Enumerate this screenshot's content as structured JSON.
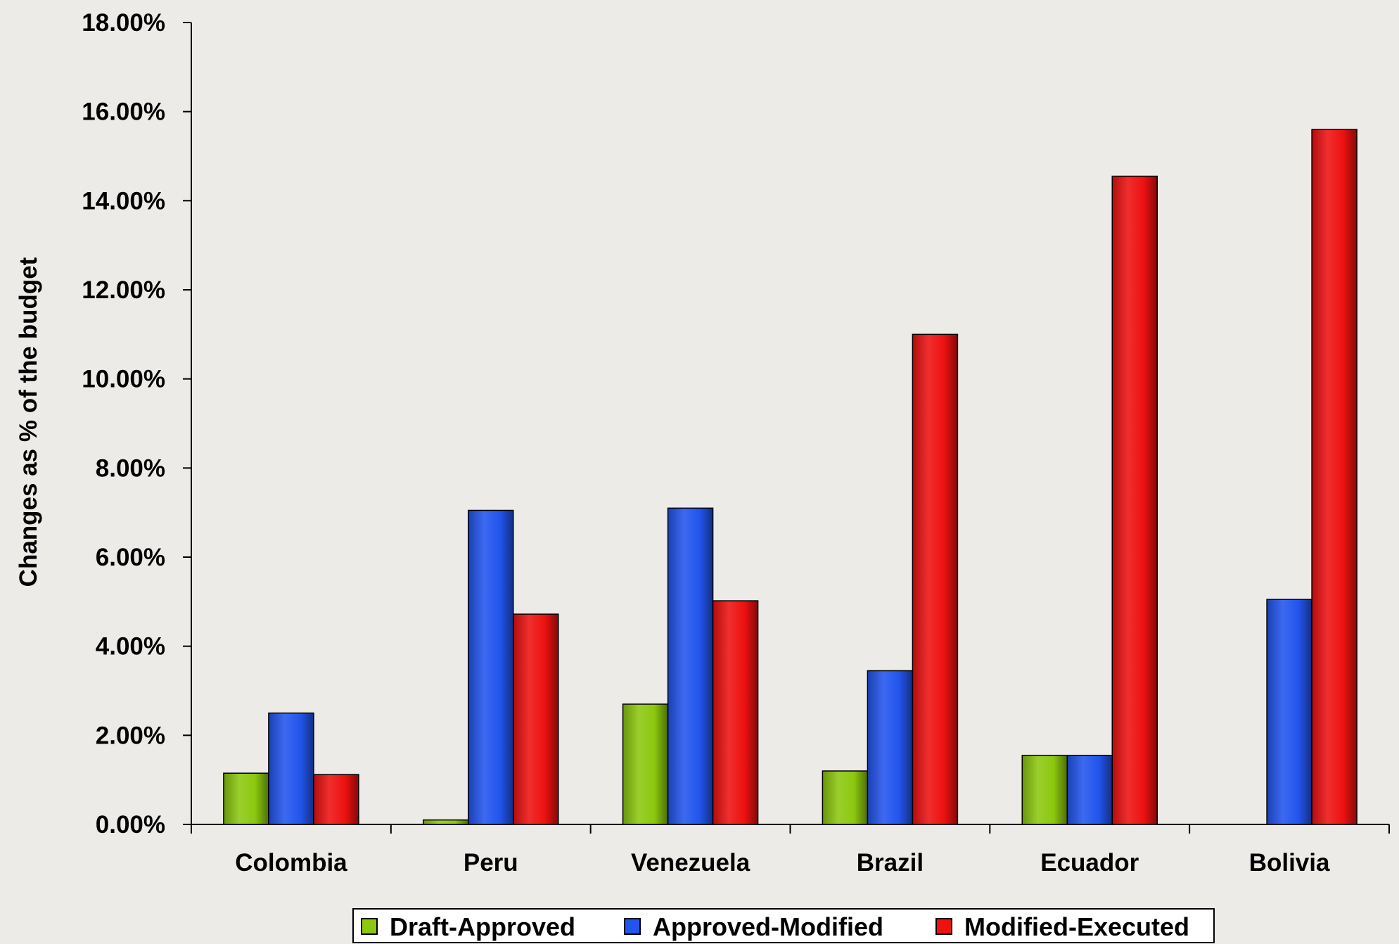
{
  "chart_data": {
    "type": "bar",
    "ylabel": "Changes as % of the budget",
    "xlabel": "",
    "ylim": [
      0,
      18
    ],
    "y_tick_step": 2,
    "y_tick_format": "percent_2dp",
    "grid": false,
    "legend_position": "bottom",
    "categories": [
      "Colombia",
      "Peru",
      "Venezuela",
      "Brazil",
      "Ecuador",
      "Bolivia"
    ],
    "series": [
      {
        "name": "Draft-Approved",
        "color": "#8cc80f",
        "values": [
          1.15,
          0.1,
          2.7,
          1.2,
          1.55,
          0
        ]
      },
      {
        "name": "Approved-Modified",
        "color": "#2255ee",
        "values": [
          2.5,
          7.05,
          7.1,
          3.45,
          1.55,
          5.05
        ]
      },
      {
        "name": "Modified-Executed",
        "color": "#ee1111",
        "values": [
          1.12,
          4.72,
          5.02,
          11.0,
          14.55,
          15.6
        ]
      }
    ]
  }
}
